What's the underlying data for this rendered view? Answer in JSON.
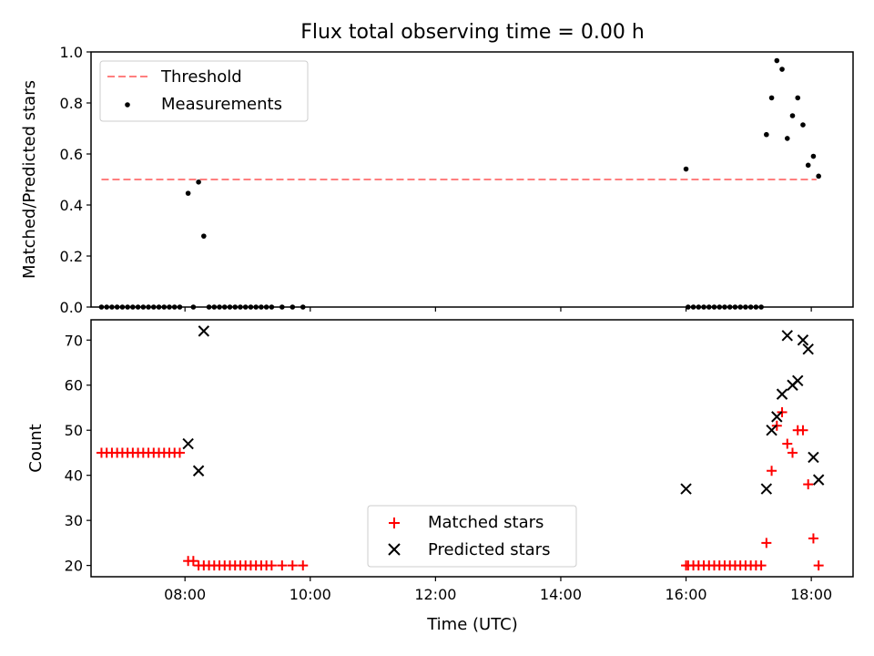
{
  "chart_data": [
    {
      "type": "scatter",
      "title": "Flux total observing time = 0.00 h",
      "xlabel": "",
      "ylabel": "Matched/Predicted stars",
      "xlim": [
        "06:30",
        "18:40"
      ],
      "ylim": [
        0,
        1.0
      ],
      "yticks": [
        "0.0",
        "0.2",
        "0.4",
        "0.6",
        "0.8",
        "1.0"
      ],
      "xticks": [
        "08:00",
        "10:00",
        "12:00",
        "14:00",
        "16:00",
        "18:00"
      ],
      "show_xtick_labels": false,
      "grid": false,
      "legend_location": "upper-left",
      "threshold": {
        "name": "Threshold",
        "value": 0.5,
        "x_range": [
          "06:40",
          "18:05"
        ],
        "color": "#ff7f7f",
        "style": "dashed"
      },
      "series": [
        {
          "name": "Measurements",
          "marker": "dot",
          "color": "#000000",
          "x": [
            "06:40",
            "06:45",
            "06:50",
            "06:55",
            "07:00",
            "07:05",
            "07:10",
            "07:15",
            "07:20",
            "07:25",
            "07:30",
            "07:35",
            "07:40",
            "07:45",
            "07:50",
            "07:55",
            "08:03",
            "08:08",
            "08:13",
            "08:18",
            "08:23",
            "08:28",
            "08:33",
            "08:38",
            "08:43",
            "08:48",
            "08:53",
            "08:58",
            "09:03",
            "09:08",
            "09:13",
            "09:18",
            "09:23",
            "09:33",
            "09:43",
            "09:53",
            "16:00",
            "16:02",
            "16:07",
            "16:12",
            "16:17",
            "16:22",
            "16:27",
            "16:32",
            "16:37",
            "16:42",
            "16:47",
            "16:52",
            "16:57",
            "17:02",
            "17:07",
            "17:12",
            "17:17",
            "17:22",
            "17:27",
            "17:32",
            "17:37",
            "17:42",
            "17:47",
            "17:52",
            "17:57",
            "18:02",
            "18:07"
          ],
          "y": [
            0,
            0,
            0,
            0,
            0,
            0,
            0,
            0,
            0,
            0,
            0,
            0,
            0,
            0,
            0,
            0,
            0.446,
            0,
            0.49,
            0.278,
            0,
            0,
            0,
            0,
            0,
            0,
            0,
            0,
            0,
            0,
            0,
            0,
            0,
            0,
            0,
            0,
            0.541,
            0,
            0,
            0,
            0,
            0,
            0,
            0,
            0,
            0,
            0,
            0,
            0,
            0,
            0,
            0,
            0.676,
            0.82,
            0.966,
            0.932,
            0.661,
            0.75,
            0.82,
            0.714,
            0.556,
            0.591,
            0.513
          ]
        }
      ]
    },
    {
      "type": "scatter",
      "title": "",
      "xlabel": "Time (UTC)",
      "ylabel": "Count",
      "xlim": [
        "06:30",
        "18:40"
      ],
      "ylim": [
        17.5,
        74.5
      ],
      "yticks": [
        "20",
        "30",
        "40",
        "50",
        "60",
        "70"
      ],
      "xticks": [
        "08:00",
        "10:00",
        "12:00",
        "14:00",
        "16:00",
        "18:00"
      ],
      "grid": false,
      "legend_location": "lower-center",
      "series": [
        {
          "name": "Matched stars",
          "marker": "plus",
          "color": "#ff0000",
          "x": [
            "06:40",
            "06:45",
            "06:50",
            "06:55",
            "07:00",
            "07:05",
            "07:10",
            "07:15",
            "07:20",
            "07:25",
            "07:30",
            "07:35",
            "07:40",
            "07:45",
            "07:50",
            "07:55",
            "08:03",
            "08:08",
            "08:13",
            "08:18",
            "08:23",
            "08:28",
            "08:33",
            "08:38",
            "08:43",
            "08:48",
            "08:53",
            "08:58",
            "09:03",
            "09:08",
            "09:13",
            "09:18",
            "09:23",
            "09:33",
            "09:43",
            "09:53",
            "16:00",
            "16:02",
            "16:07",
            "16:12",
            "16:17",
            "16:22",
            "16:27",
            "16:32",
            "16:37",
            "16:42",
            "16:47",
            "16:52",
            "16:57",
            "17:02",
            "17:07",
            "17:12",
            "17:17",
            "17:22",
            "17:27",
            "17:32",
            "17:37",
            "17:42",
            "17:47",
            "17:52",
            "17:57",
            "18:02",
            "18:07"
          ],
          "y": [
            45,
            45,
            45,
            45,
            45,
            45,
            45,
            45,
            45,
            45,
            45,
            45,
            45,
            45,
            45,
            45,
            21,
            21,
            20,
            20,
            20,
            20,
            20,
            20,
            20,
            20,
            20,
            20,
            20,
            20,
            20,
            20,
            20,
            20,
            20,
            20,
            20,
            20,
            20,
            20,
            20,
            20,
            20,
            20,
            20,
            20,
            20,
            20,
            20,
            20,
            20,
            20,
            25,
            41,
            51,
            54,
            47,
            45,
            50,
            50,
            38,
            26,
            20
          ]
        },
        {
          "name": "Predicted stars",
          "marker": "x",
          "color": "#000000",
          "x": [
            "08:03",
            "08:13",
            "08:18",
            "16:00",
            "17:17",
            "17:22",
            "17:27",
            "17:32",
            "17:37",
            "17:42",
            "17:47",
            "17:52",
            "17:57",
            "18:02",
            "18:07"
          ],
          "y": [
            47,
            41,
            72,
            37,
            37,
            50,
            53,
            58,
            71,
            60,
            61,
            70,
            68,
            44,
            39
          ]
        }
      ]
    }
  ]
}
